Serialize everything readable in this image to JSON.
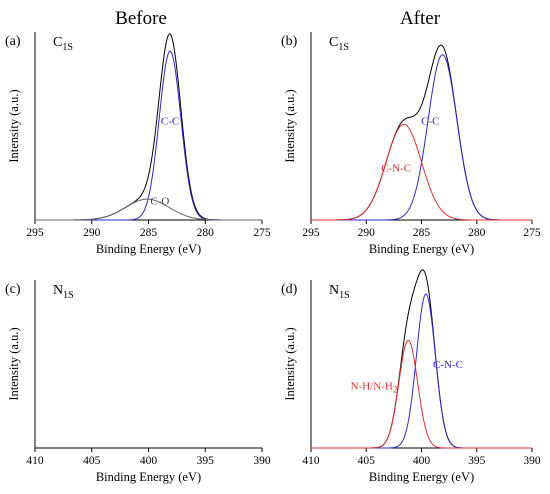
{
  "column_titles": [
    "Before",
    "After"
  ],
  "colors": {
    "envelope": "#000000",
    "blue": "#2b2bcc",
    "gray": "#666666",
    "red": "#e03030"
  },
  "chart_data": [
    {
      "type": "line",
      "panel": "(a)",
      "element": "C",
      "element_sub": "1S",
      "xlabel": "Binding Energy (eV)",
      "ylabel": "Intensity (a.u.)",
      "xlim": [
        295,
        275
      ],
      "x_reversed": true,
      "xticks": [
        295,
        290,
        285,
        280,
        275
      ],
      "has_data": true,
      "series": [
        {
          "role": "envelope",
          "color": "#000000",
          "peaks": [
            {
              "center": 283.1,
              "height": 1.0,
              "width": 0.95
            },
            {
              "center": 285.1,
              "height": 0.12,
              "width": 1.9
            }
          ]
        },
        {
          "name": "C-C",
          "color": "#2b2bcc",
          "peaks": [
            {
              "center": 283.1,
              "height": 0.97,
              "width": 0.95
            }
          ]
        },
        {
          "name": "C-O",
          "color": "#666666",
          "peaks": [
            {
              "center": 285.1,
              "height": 0.12,
              "width": 1.9
            }
          ]
        }
      ],
      "labels": [
        {
          "text": "C-C",
          "color": "#2b2bcc",
          "x": 283.1,
          "y": 0.55
        },
        {
          "text": "C-O",
          "color": "#444444",
          "x": 284.0,
          "y": 0.09
        }
      ]
    },
    {
      "type": "line",
      "panel": "(b)",
      "element": "C",
      "element_sub": "1S",
      "xlabel": "Binding Energy (eV)",
      "ylabel": "Intensity (a.u.)",
      "xlim": [
        295,
        275
      ],
      "x_reversed": true,
      "xticks": [
        295,
        290,
        285,
        280,
        275
      ],
      "has_data": true,
      "series": [
        {
          "role": "envelope",
          "color": "#000000",
          "peaks": [
            {
              "center": 283.1,
              "height": 0.95,
              "width": 1.3
            },
            {
              "center": 286.6,
              "height": 0.55,
              "width": 1.6
            }
          ]
        },
        {
          "name": "C-C",
          "color": "#2b2bcc",
          "peaks": [
            {
              "center": 283.1,
              "height": 0.95,
              "width": 1.3
            }
          ]
        },
        {
          "name": "C-N-C",
          "color": "#e03030",
          "peaks": [
            {
              "center": 286.6,
              "height": 0.55,
              "width": 1.6
            }
          ]
        }
      ],
      "labels": [
        {
          "text": "C-C",
          "color": "#2b2bcc",
          "x": 284.2,
          "y": 0.55
        },
        {
          "text": "C-N-C",
          "color": "#e03030",
          "x": 287.3,
          "y": 0.28
        }
      ]
    },
    {
      "type": "line",
      "panel": "(c)",
      "element": "N",
      "element_sub": "1S",
      "xlabel": "Binding Energy (eV)",
      "ylabel": "Intensity (a.u.)",
      "xlim": [
        410,
        390
      ],
      "x_reversed": true,
      "xticks": [
        410,
        405,
        400,
        395,
        390
      ],
      "has_data": false,
      "series": [],
      "labels": []
    },
    {
      "type": "line",
      "panel": "(d)",
      "element": "N",
      "element_sub": "1S",
      "xlabel": "Binding Energy (eV)",
      "ylabel": "Intensity (a.u.)",
      "xlim": [
        410,
        390
      ],
      "x_reversed": true,
      "xticks": [
        410,
        405,
        400,
        395,
        390
      ],
      "has_data": true,
      "series": [
        {
          "role": "envelope",
          "color": "#000000",
          "peaks": [
            {
              "center": 399.6,
              "height": 1.0,
              "width": 0.85
            },
            {
              "center": 401.2,
              "height": 0.7,
              "width": 0.85
            }
          ]
        },
        {
          "name": "C-N-C",
          "color": "#2b2bcc",
          "peaks": [
            {
              "center": 399.6,
              "height": 1.0,
              "width": 0.85
            }
          ]
        },
        {
          "name": "N-H/N-H2",
          "color": "#e03030",
          "peaks": [
            {
              "center": 401.2,
              "height": 0.7,
              "width": 0.85
            }
          ]
        }
      ],
      "labels": [
        {
          "text": "C-N-C",
          "color": "#2b2bcc",
          "x": 397.6,
          "y": 0.52
        },
        {
          "text": "N-H/N-H",
          "text_sub": "2",
          "color": "#e03030",
          "x": 404.3,
          "y": 0.38
        }
      ]
    }
  ]
}
